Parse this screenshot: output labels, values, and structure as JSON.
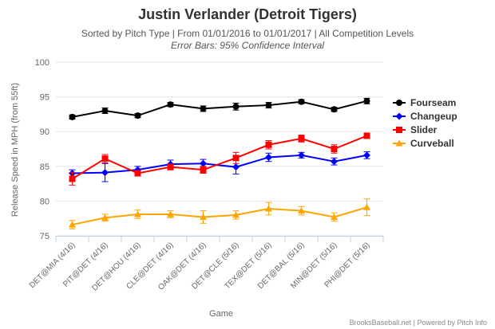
{
  "chart_data": {
    "type": "line",
    "title": "Justin Verlander (Detroit Tigers)",
    "subtitle": "Sorted by Pitch Type | From 01/01/2016 to 01/01/2017 | All Competition Levels",
    "subtitle2": "Error Bars: 95% Confidence Interval",
    "xlabel": "Game",
    "ylabel": "Release Speed in MPH (from 55ft)",
    "ylim": [
      75,
      100
    ],
    "yticks": [
      75,
      80,
      85,
      90,
      95,
      100
    ],
    "categories": [
      "DET@MIA (4/16)",
      "PIT@DET (4/16)",
      "DET@HOU (4/16)",
      "CLE@DET (4/16)",
      "OAK@DET (4/16)",
      "DET@CLE (5/16)",
      "TEX@DET (5/16)",
      "DET@BAL (5/16)",
      "MIN@DET (5/16)",
      "PHI@DET (5/16)"
    ],
    "series": [
      {
        "name": "Fourseam",
        "color": "#000000",
        "marker": "circle",
        "values": [
          92.1,
          93.0,
          92.3,
          93.9,
          93.3,
          93.6,
          93.8,
          94.3,
          93.2,
          94.4
        ],
        "errors": [
          0.3,
          0.4,
          0.3,
          0.3,
          0.4,
          0.5,
          0.4,
          0.3,
          0.3,
          0.4
        ]
      },
      {
        "name": "Changeup",
        "color": "#0000ff",
        "marker": "diamond",
        "values": [
          84.0,
          84.1,
          84.5,
          85.3,
          85.4,
          84.9,
          86.3,
          86.6,
          85.7,
          86.6
        ],
        "errors": [
          0.5,
          1.3,
          0.5,
          0.6,
          0.6,
          1.0,
          0.6,
          0.4,
          0.5,
          0.5
        ]
      },
      {
        "name": "Slider",
        "color": "#ff0000",
        "marker": "square",
        "values": [
          83.2,
          86.1,
          84.0,
          84.9,
          84.5,
          86.2,
          88.1,
          89.0,
          87.5,
          89.4
        ],
        "errors": [
          0.9,
          0.6,
          0.4,
          0.4,
          0.5,
          0.8,
          0.6,
          0.5,
          0.6,
          0.3
        ]
      },
      {
        "name": "Curveball",
        "color": "#ffa500",
        "marker": "triangle",
        "values": [
          76.6,
          77.6,
          78.1,
          78.1,
          77.7,
          78.0,
          78.9,
          78.6,
          77.7,
          79.1
        ],
        "errors": [
          0.6,
          0.5,
          0.6,
          0.5,
          0.9,
          0.6,
          0.9,
          0.6,
          0.6,
          1.2
        ]
      }
    ],
    "legend_position": "right",
    "grid": true,
    "credit": "BrooksBaseball.net | Powered by Pitch Info"
  }
}
